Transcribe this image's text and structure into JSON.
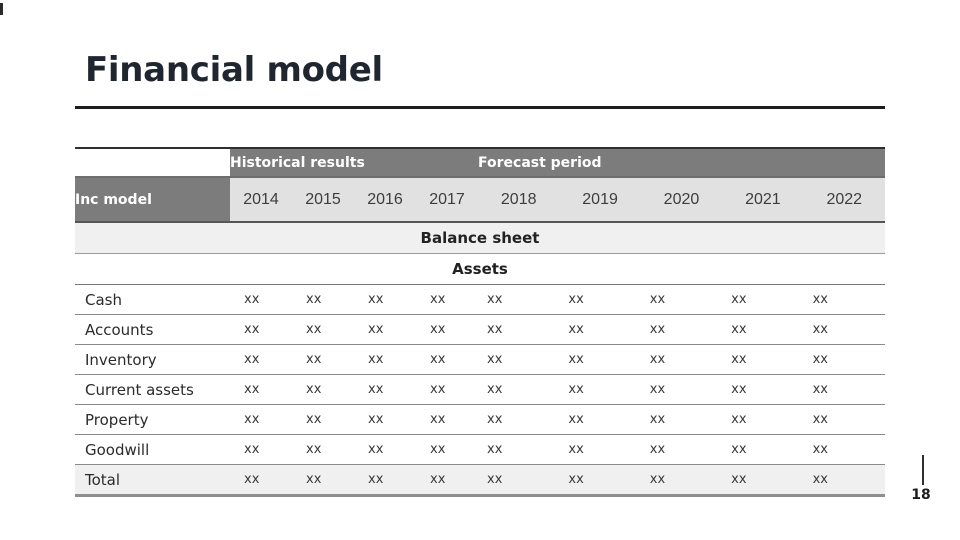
{
  "slide": {
    "title": "Financial model",
    "page_number": "18"
  },
  "table": {
    "band": {
      "historical_label": "Historical results",
      "forecast_label": "Forecast period"
    },
    "corner_label": "Inc model",
    "years": [
      "2014",
      "2015",
      "2016",
      "2017",
      "2018",
      "2019",
      "2020",
      "2021",
      "2022"
    ],
    "sections": {
      "balance_sheet": "Balance sheet",
      "assets": "Assets"
    },
    "rows": [
      {
        "label": "Cash",
        "values": [
          "xx",
          "xx",
          "xx",
          "xx",
          "xx",
          "xx",
          "xx",
          "xx",
          "xx"
        ]
      },
      {
        "label": "Accounts",
        "values": [
          "xx",
          "xx",
          "xx",
          "xx",
          "xx",
          "xx",
          "xx",
          "xx",
          "xx"
        ]
      },
      {
        "label": "Inventory",
        "values": [
          "xx",
          "xx",
          "xx",
          "xx",
          "xx",
          "xx",
          "xx",
          "xx",
          "xx"
        ]
      },
      {
        "label": "Current assets",
        "values": [
          "xx",
          "xx",
          "xx",
          "xx",
          "xx",
          "xx",
          "xx",
          "xx",
          "xx"
        ]
      },
      {
        "label": "Property",
        "values": [
          "xx",
          "xx",
          "xx",
          "xx",
          "xx",
          "xx",
          "xx",
          "xx",
          "xx"
        ]
      },
      {
        "label": "Goodwill",
        "values": [
          "xx",
          "xx",
          "xx",
          "xx",
          "xx",
          "xx",
          "xx",
          "xx",
          "xx"
        ]
      },
      {
        "label": "Total",
        "values": [
          "xx",
          "xx",
          "xx",
          "xx",
          "xx",
          "xx",
          "xx",
          "xx",
          "xx"
        ]
      }
    ]
  },
  "colors": {
    "header_gray": "#7c7c7c",
    "years_row_bg": "#e1e1e1",
    "stripe_bg": "#f0f0f0",
    "title_color": "#1f2630"
  }
}
